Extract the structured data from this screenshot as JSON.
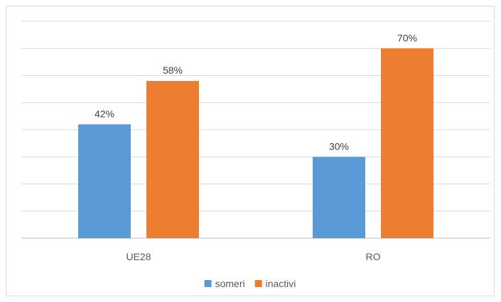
{
  "chart_data": {
    "type": "bar",
    "categories": [
      "UE28",
      "RO"
    ],
    "series": [
      {
        "name": "someri",
        "values": [
          42,
          30
        ],
        "labels": [
          "42%",
          "30%"
        ],
        "color": "#5B9BD5"
      },
      {
        "name": "inactivi",
        "values": [
          58,
          70
        ],
        "labels": [
          "58%",
          "70%"
        ],
        "color": "#ED7D31"
      }
    ],
    "ylim": [
      0,
      80
    ],
    "grid": true,
    "legend_placement": "bottom"
  },
  "colors": {
    "gridline": "#d9d9d9",
    "axis": "#bfbfbf"
  }
}
